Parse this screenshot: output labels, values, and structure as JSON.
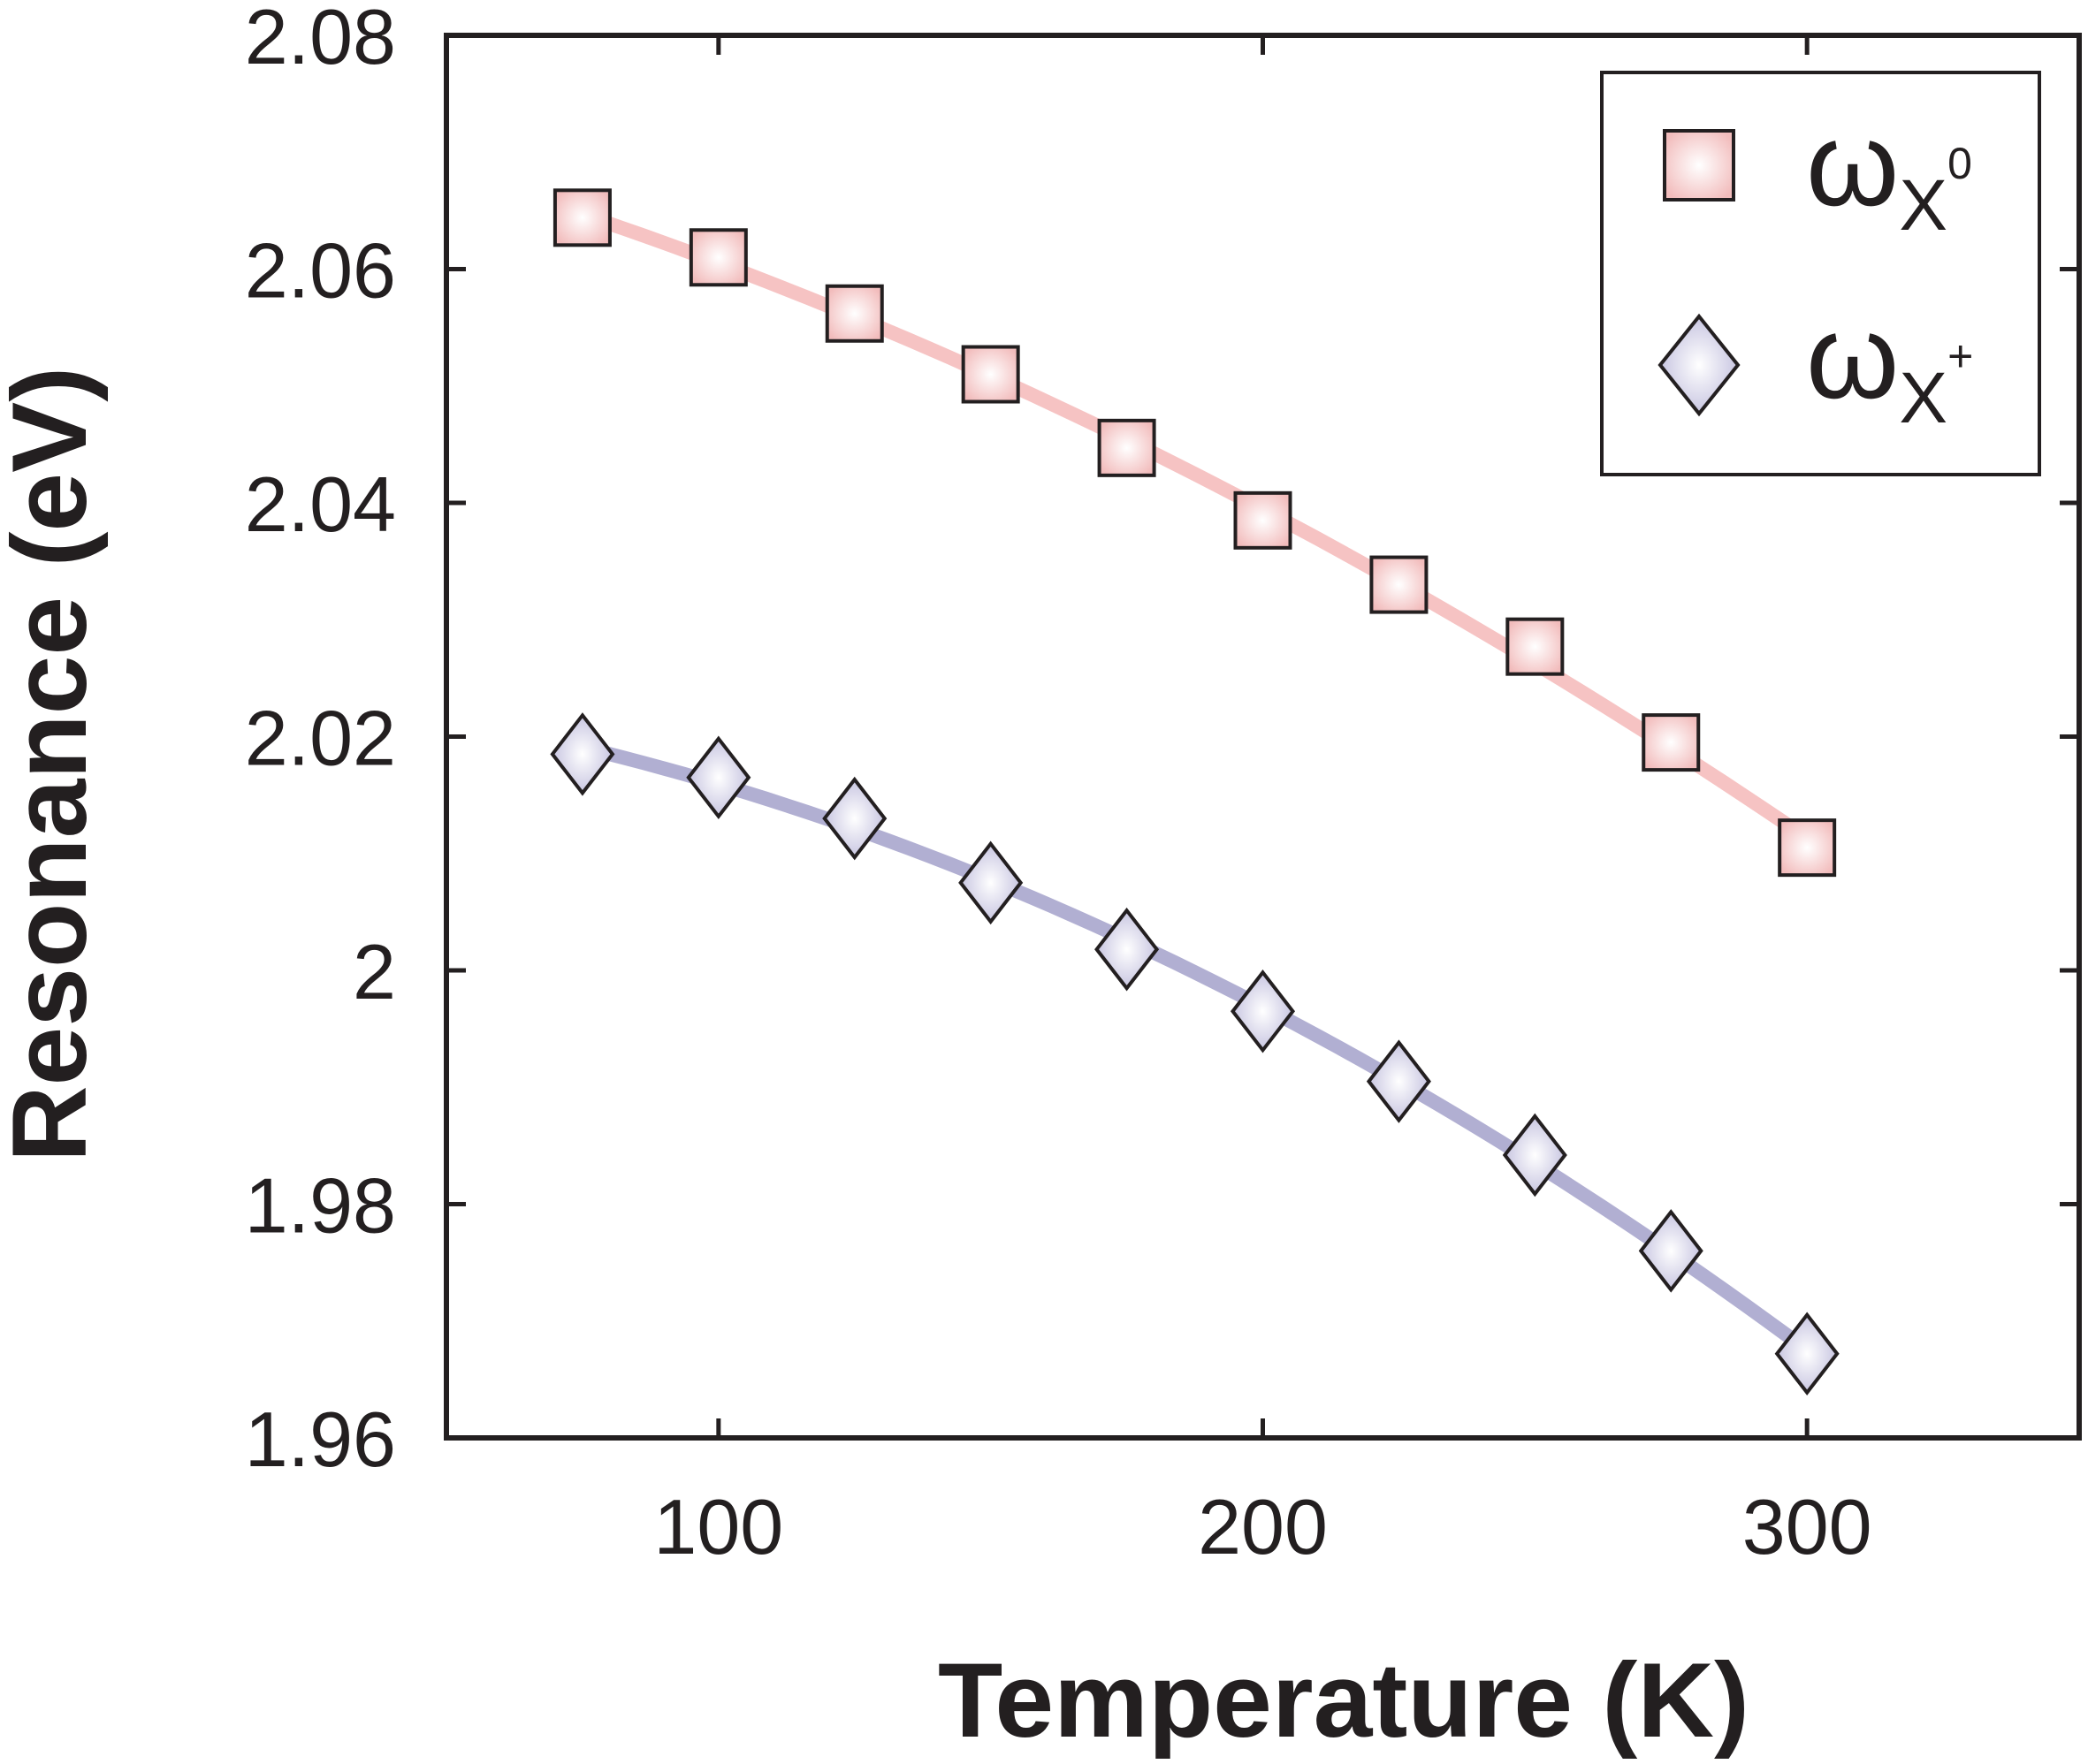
{
  "chart_data": {
    "type": "scatter",
    "title": "",
    "xlabel": "Temperature (K)",
    "ylabel": "Resonance (eV)",
    "xlim": [
      50,
      350
    ],
    "ylim": [
      1.96,
      2.08
    ],
    "xticks": [
      100,
      200,
      300
    ],
    "xtick_labels": [
      "100",
      "200",
      "300"
    ],
    "yticks": [
      1.96,
      1.98,
      2.0,
      2.02,
      2.04,
      2.06,
      2.08
    ],
    "ytick_labels": [
      "1.96",
      "1.98",
      "2",
      "2.02",
      "2.04",
      "2.06",
      "2.08"
    ],
    "grid": false,
    "legend_position": "top-right",
    "x": [
      75,
      100,
      125,
      150,
      175,
      200,
      225,
      250,
      275,
      300
    ],
    "series": [
      {
        "name": "ωX0",
        "legend_main": "ω",
        "legend_sub": "X",
        "legend_sup": "0",
        "marker": "square",
        "marker_color": "#f3c4c4",
        "fit_color": "#f4b8b8",
        "values": [
          2.0644,
          2.061,
          2.0562,
          2.051,
          2.0447,
          2.0385,
          2.033,
          2.0277,
          2.0195,
          2.0105
        ]
      },
      {
        "name": "ωX+",
        "legend_main": "ω",
        "legend_sub": "X",
        "legend_sup": "+",
        "marker": "diamond",
        "marker_color": "#c4c2de",
        "fit_color": "#a9a6cd",
        "values": [
          2.0185,
          2.0165,
          2.013,
          2.0075,
          2.0018,
          1.9965,
          1.9905,
          1.9842,
          1.976,
          1.9672
        ]
      }
    ]
  }
}
